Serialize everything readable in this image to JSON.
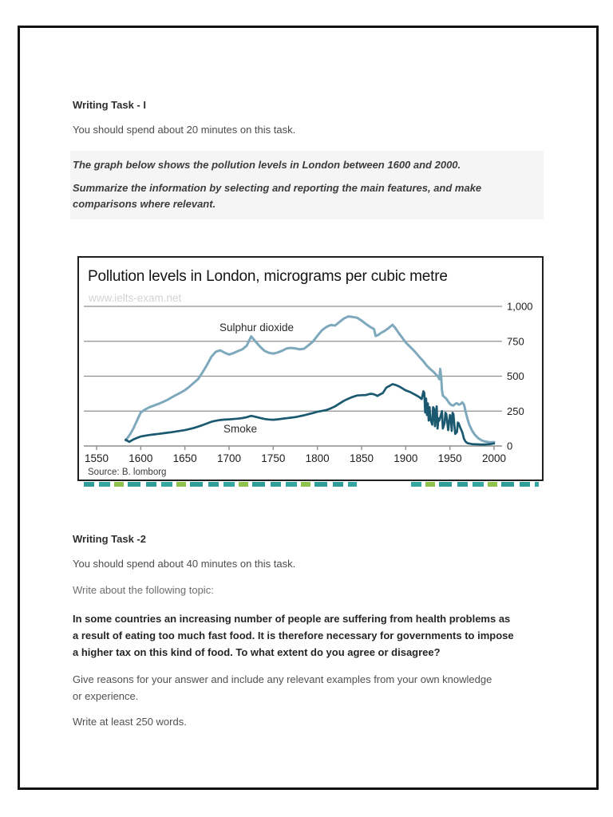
{
  "document": {
    "task1": {
      "heading": "Writing Task - I",
      "time_note": "You should spend about 20 minutes on this task.",
      "prompt_line1": "The graph below shows the pollution levels in London between 1600 and 2000.",
      "prompt_line2": [
        "Summarize the information by selecting and reporting the main features, and make",
        "comparisons where relevant."
      ]
    },
    "task2": {
      "heading": "Writing Task -2",
      "time_note": "You should spend about 40 minutes on this task.",
      "topic_intro": "Write about the following topic:",
      "topic_lines": [
        "In some countries an increasing number of people are suffering from health problems as",
        "a result of eating too much fast food. It is therefore necessary for governments to impose",
        "a higher tax on this kind of food. To what extent do you agree or disagree?"
      ],
      "guidance_lines": [
        "Give reasons for your answer and include any relevant examples from your own knowledge",
        "or experience."
      ],
      "word_count_note": "Write at least 250 words."
    }
  },
  "chart_data": {
    "type": "line",
    "title": "Pollution levels in London, micrograms per cubic metre",
    "watermark": "www.ielts-exam.net",
    "source": "Source: B. lomborg",
    "xlabel": "",
    "ylabel": "micrograms per cubic metre",
    "xlim": [
      1550,
      2005
    ],
    "ylim": [
      0,
      1050
    ],
    "x_ticks": [
      1550,
      1600,
      1650,
      1700,
      1750,
      1800,
      1850,
      1900,
      1950,
      2000
    ],
    "y_ticks": [
      0,
      250,
      500,
      750,
      1000
    ],
    "y_tick_labels": [
      "0",
      "250",
      "500",
      "750",
      "1,000"
    ],
    "grid": "horizontal",
    "legend_position": "inline-labels",
    "colors": {
      "gridline": "#8f8f8f",
      "axis_text": "#1c1c1c",
      "label_text": "#2a2a2a"
    },
    "series": [
      {
        "name": "Sulphur dioxide",
        "color": "#7ea9bd",
        "points": [
          [
            1583,
            40
          ],
          [
            1588,
            85
          ],
          [
            1592,
            130
          ],
          [
            1596,
            185
          ],
          [
            1600,
            240
          ],
          [
            1605,
            262
          ],
          [
            1610,
            278
          ],
          [
            1615,
            290
          ],
          [
            1620,
            302
          ],
          [
            1625,
            315
          ],
          [
            1630,
            330
          ],
          [
            1635,
            348
          ],
          [
            1640,
            365
          ],
          [
            1645,
            382
          ],
          [
            1650,
            400
          ],
          [
            1655,
            424
          ],
          [
            1660,
            452
          ],
          [
            1665,
            480
          ],
          [
            1670,
            528
          ],
          [
            1675,
            580
          ],
          [
            1680,
            640
          ],
          [
            1685,
            675
          ],
          [
            1690,
            685
          ],
          [
            1695,
            668
          ],
          [
            1700,
            655
          ],
          [
            1705,
            665
          ],
          [
            1710,
            680
          ],
          [
            1715,
            692
          ],
          [
            1720,
            718
          ],
          [
            1725,
            785
          ],
          [
            1730,
            748
          ],
          [
            1735,
            712
          ],
          [
            1740,
            682
          ],
          [
            1745,
            668
          ],
          [
            1750,
            662
          ],
          [
            1755,
            670
          ],
          [
            1760,
            682
          ],
          [
            1765,
            698
          ],
          [
            1770,
            703
          ],
          [
            1775,
            699
          ],
          [
            1780,
            692
          ],
          [
            1785,
            697
          ],
          [
            1790,
            722
          ],
          [
            1795,
            748
          ],
          [
            1800,
            790
          ],
          [
            1805,
            828
          ],
          [
            1810,
            852
          ],
          [
            1815,
            866
          ],
          [
            1820,
            863
          ],
          [
            1825,
            888
          ],
          [
            1830,
            913
          ],
          [
            1835,
            928
          ],
          [
            1840,
            924
          ],
          [
            1845,
            918
          ],
          [
            1850,
            898
          ],
          [
            1855,
            874
          ],
          [
            1860,
            852
          ],
          [
            1864,
            838
          ],
          [
            1866,
            788
          ],
          [
            1869,
            796
          ],
          [
            1872,
            810
          ],
          [
            1876,
            824
          ],
          [
            1880,
            842
          ],
          [
            1885,
            868
          ],
          [
            1888,
            846
          ],
          [
            1892,
            810
          ],
          [
            1896,
            776
          ],
          [
            1900,
            742
          ],
          [
            1905,
            710
          ],
          [
            1910,
            678
          ],
          [
            1915,
            642
          ],
          [
            1920,
            606
          ],
          [
            1924,
            574
          ],
          [
            1928,
            550
          ],
          [
            1932,
            528
          ],
          [
            1935,
            506
          ],
          [
            1937,
            492
          ],
          [
            1938,
            478
          ],
          [
            1939,
            552
          ],
          [
            1940,
            505
          ],
          [
            1941,
            400
          ],
          [
            1942,
            362
          ],
          [
            1944,
            350
          ],
          [
            1946,
            338
          ],
          [
            1948,
            318
          ],
          [
            1950,
            302
          ],
          [
            1952,
            292
          ],
          [
            1954,
            290
          ],
          [
            1956,
            302
          ],
          [
            1958,
            306
          ],
          [
            1960,
            296
          ],
          [
            1962,
            300
          ],
          [
            1964,
            312
          ],
          [
            1966,
            296
          ],
          [
            1968,
            240
          ],
          [
            1970,
            192
          ],
          [
            1972,
            152
          ],
          [
            1975,
            112
          ],
          [
            1978,
            82
          ],
          [
            1982,
            56
          ],
          [
            1986,
            40
          ],
          [
            1990,
            32
          ],
          [
            1995,
            26
          ],
          [
            2000,
            28
          ]
        ]
      },
      {
        "name": "Smoke",
        "color": "#1a5970",
        "points": [
          [
            1583,
            45
          ],
          [
            1587,
            30
          ],
          [
            1592,
            48
          ],
          [
            1596,
            58
          ],
          [
            1600,
            68
          ],
          [
            1605,
            74
          ],
          [
            1610,
            79
          ],
          [
            1615,
            83
          ],
          [
            1620,
            87
          ],
          [
            1625,
            91
          ],
          [
            1630,
            95
          ],
          [
            1635,
            99
          ],
          [
            1640,
            104
          ],
          [
            1645,
            109
          ],
          [
            1650,
            114
          ],
          [
            1655,
            121
          ],
          [
            1660,
            129
          ],
          [
            1665,
            139
          ],
          [
            1670,
            150
          ],
          [
            1675,
            162
          ],
          [
            1680,
            174
          ],
          [
            1685,
            181
          ],
          [
            1690,
            186
          ],
          [
            1695,
            189
          ],
          [
            1700,
            191
          ],
          [
            1705,
            193
          ],
          [
            1710,
            196
          ],
          [
            1715,
            200
          ],
          [
            1720,
            206
          ],
          [
            1725,
            216
          ],
          [
            1730,
            209
          ],
          [
            1735,
            201
          ],
          [
            1740,
            194
          ],
          [
            1745,
            190
          ],
          [
            1750,
            188
          ],
          [
            1755,
            191
          ],
          [
            1760,
            195
          ],
          [
            1765,
            199
          ],
          [
            1770,
            203
          ],
          [
            1775,
            207
          ],
          [
            1780,
            213
          ],
          [
            1785,
            220
          ],
          [
            1790,
            228
          ],
          [
            1795,
            236
          ],
          [
            1800,
            245
          ],
          [
            1805,
            251
          ],
          [
            1810,
            257
          ],
          [
            1815,
            269
          ],
          [
            1820,
            284
          ],
          [
            1825,
            304
          ],
          [
            1830,
            324
          ],
          [
            1835,
            339
          ],
          [
            1840,
            352
          ],
          [
            1845,
            362
          ],
          [
            1850,
            364
          ],
          [
            1855,
            365
          ],
          [
            1860,
            374
          ],
          [
            1863,
            372
          ],
          [
            1866,
            365
          ],
          [
            1868,
            358
          ],
          [
            1870,
            366
          ],
          [
            1874,
            379
          ],
          [
            1878,
            418
          ],
          [
            1882,
            432
          ],
          [
            1885,
            443
          ],
          [
            1888,
            438
          ],
          [
            1892,
            428
          ],
          [
            1896,
            414
          ],
          [
            1900,
            398
          ],
          [
            1905,
            386
          ],
          [
            1910,
            370
          ],
          [
            1915,
            352
          ],
          [
            1918,
            336
          ],
          [
            1920,
            392
          ],
          [
            1921,
            380
          ],
          [
            1922,
            240
          ],
          [
            1923,
            340
          ],
          [
            1924,
            222
          ],
          [
            1925,
            305
          ],
          [
            1926,
            182
          ],
          [
            1927,
            278
          ],
          [
            1928,
            193
          ],
          [
            1930,
            153
          ],
          [
            1931,
            278
          ],
          [
            1932,
            266
          ],
          [
            1933,
            142
          ],
          [
            1934,
            238
          ],
          [
            1935,
            284
          ],
          [
            1936,
            125
          ],
          [
            1937,
            198
          ],
          [
            1938,
            182
          ],
          [
            1940,
            227
          ],
          [
            1941,
            250
          ],
          [
            1942,
            125
          ],
          [
            1944,
            165
          ],
          [
            1945,
            238
          ],
          [
            1946,
            227
          ],
          [
            1948,
            114
          ],
          [
            1950,
            222
          ],
          [
            1951,
            210
          ],
          [
            1952,
            108
          ],
          [
            1953,
            238
          ],
          [
            1954,
            227
          ],
          [
            1956,
            86
          ],
          [
            1958,
            100
          ],
          [
            1959,
            168
          ],
          [
            1960,
            162
          ],
          [
            1962,
            128
          ],
          [
            1964,
            98
          ],
          [
            1966,
            50
          ],
          [
            1968,
            30
          ],
          [
            1970,
            20
          ],
          [
            1975,
            14
          ],
          [
            1980,
            12
          ],
          [
            1985,
            11
          ],
          [
            1990,
            11
          ],
          [
            1995,
            13
          ],
          [
            2000,
            18
          ]
        ]
      }
    ]
  },
  "decor": {
    "cropped_strip_colors": [
      "#2f9e99",
      "#8fc24d"
    ]
  }
}
